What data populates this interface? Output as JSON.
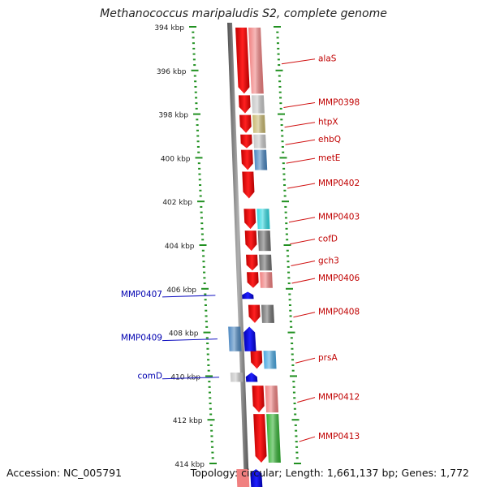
{
  "title": "Methanococcus maripaludis S2, complete genome",
  "footer": {
    "accession": "Accession: NC_005791",
    "topology": "Topology: circular; Length: 1,661,137 bp; Genes: 1,772"
  },
  "axis": {
    "unit": "kbp",
    "ticks": [
      394,
      396,
      398,
      400,
      402,
      404,
      406,
      408,
      410,
      412,
      414
    ],
    "labels": [
      "394 kbp",
      "396 kbp",
      "398 kbp",
      "400 kbp",
      "402 kbp",
      "404 kbp",
      "406 kbp",
      "408 kbp",
      "410 kbp",
      "412 kbp",
      "414 kbp"
    ]
  },
  "genes_forward": [
    {
      "name": "alaS",
      "start": 394.0,
      "end": 397.1,
      "cog_color": "#f08080"
    },
    {
      "name": "MMP0398",
      "start": 397.1,
      "end": 398.0,
      "cog_color": "#c8c8c8"
    },
    {
      "name": "htpX",
      "start": 398.0,
      "end": 398.9,
      "cog_color": "#c8b870"
    },
    {
      "name": "ehbQ",
      "start": 398.9,
      "end": 399.6,
      "cog_color": "#c8c8c8"
    },
    {
      "name": "metE",
      "start": 399.6,
      "end": 400.6,
      "cog_color": "#4a86c0"
    },
    {
      "name": "MMP0402",
      "start": 400.6,
      "end": 401.9,
      "cog_color": ""
    },
    {
      "name": "MMP0403",
      "start": 402.3,
      "end": 403.3,
      "cog_color": "#30d8e0"
    },
    {
      "name": "cofD",
      "start": 403.3,
      "end": 404.3,
      "cog_color": "#707070"
    },
    {
      "name": "gch3",
      "start": 404.4,
      "end": 405.2,
      "cog_color": "#707070"
    },
    {
      "name": "MMP0406",
      "start": 405.2,
      "end": 406.0,
      "cog_color": "#f08080"
    },
    {
      "name": "MMP0408",
      "start": 406.7,
      "end": 407.6,
      "cog_color": "#707070"
    },
    {
      "name": "prsA",
      "start": 408.8,
      "end": 409.7,
      "cog_color": "#4aa8e0"
    },
    {
      "name": "MMP0412",
      "start": 410.4,
      "end": 411.7,
      "cog_color": "#f08080"
    },
    {
      "name": "MMP0413",
      "start": 411.7,
      "end": 414.0,
      "cog_color": "#30b030"
    }
  ],
  "genes_reverse": [
    {
      "name": "MMP0407",
      "start": 406.1,
      "end": 406.5,
      "cog_color": ""
    },
    {
      "name": "MMP0409",
      "start": 407.7,
      "end": 408.9,
      "cog_color": "#4a86c0"
    },
    {
      "name": "comD",
      "start": 409.8,
      "end": 410.3,
      "cog_color": "#c8c8c8"
    }
  ]
}
